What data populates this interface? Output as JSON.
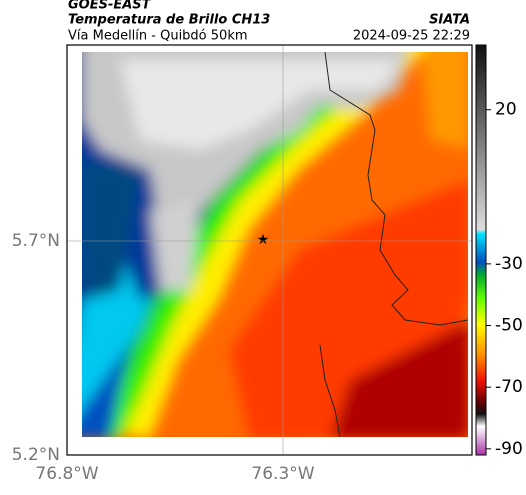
{
  "header": {
    "title": "GOES-EAST",
    "subtitle": "Temperatura de Brillo CH13",
    "source": "SIATA",
    "route": "Vía Medellín - Quibdó 50km",
    "timestamp": "2024-09-25 22:29"
  },
  "map": {
    "xticks": [
      "76.8°W",
      "76.3°W"
    ],
    "yticks": [
      "5.7°N",
      "5.2°N"
    ]
  },
  "colorbar": {
    "lim": [
      -92,
      41
    ],
    "ticks": [
      20,
      -30,
      -50,
      -70,
      -90
    ]
  }
}
